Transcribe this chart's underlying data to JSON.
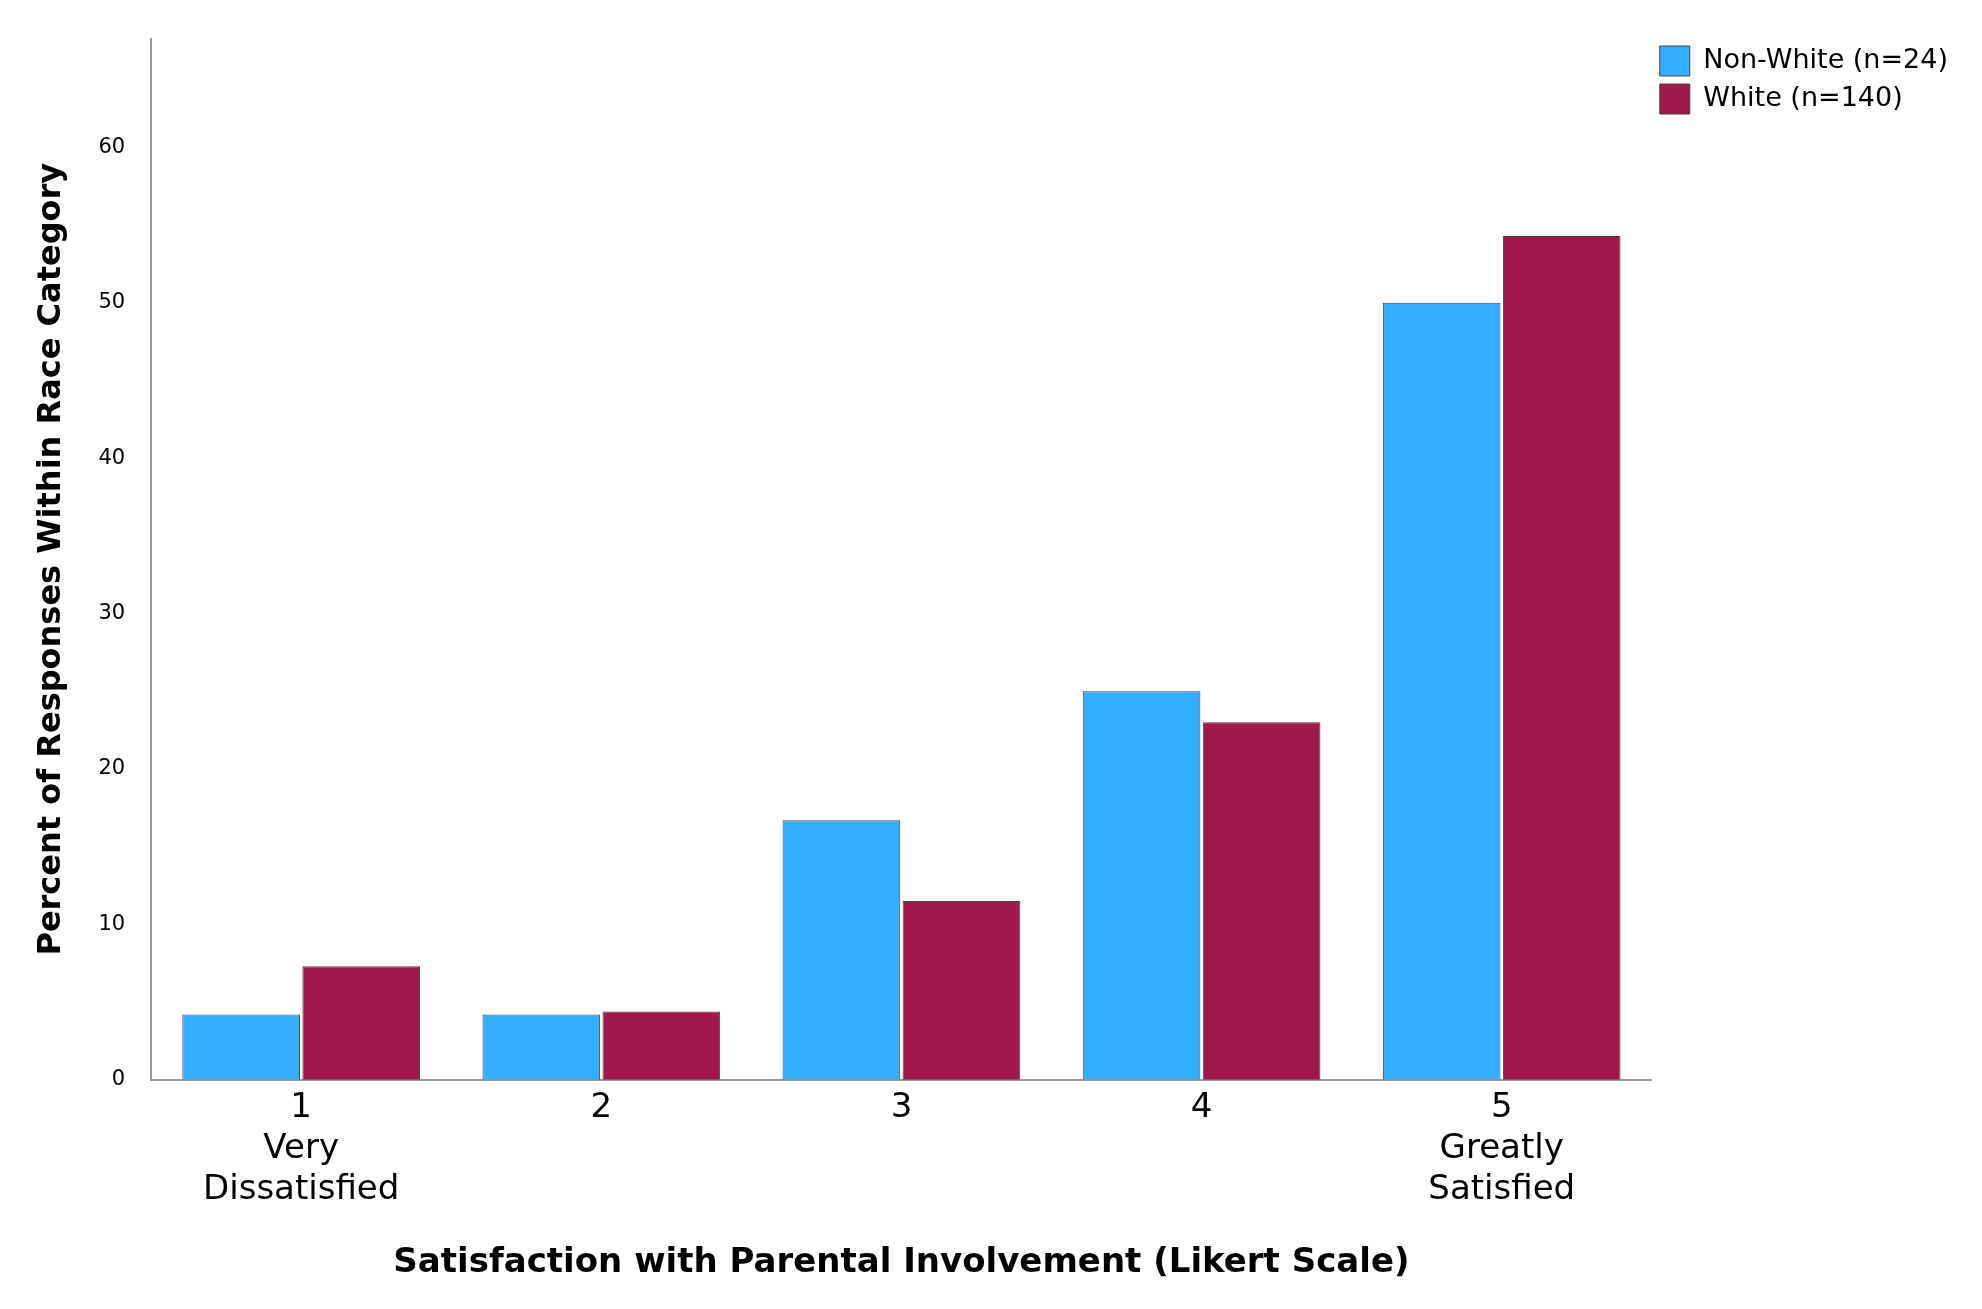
{
  "chart_data": {
    "type": "bar",
    "xlabel": "Satisfaction with Parental Involvement (Likert Scale)",
    "ylabel": "Percent of Responses Within Race Category",
    "categories": [
      "1\nVery\nDissatisfied",
      "2",
      "3",
      "4",
      "5\nGreatly\nSatisfied"
    ],
    "series": [
      {
        "name": "Non-White (n=24)",
        "color": "#33adff",
        "values": [
          4.2,
          4.2,
          16.7,
          25,
          50
        ]
      },
      {
        "name": "White (n=140)",
        "color": "#a0174b",
        "values": [
          7.3,
          4.4,
          11.5,
          23,
          54.3
        ]
      }
    ],
    "ylim": [
      0,
      67
    ],
    "yticks": [
      0,
      10,
      20,
      30,
      40,
      50,
      60
    ],
    "grid": false,
    "legend": "top right"
  }
}
